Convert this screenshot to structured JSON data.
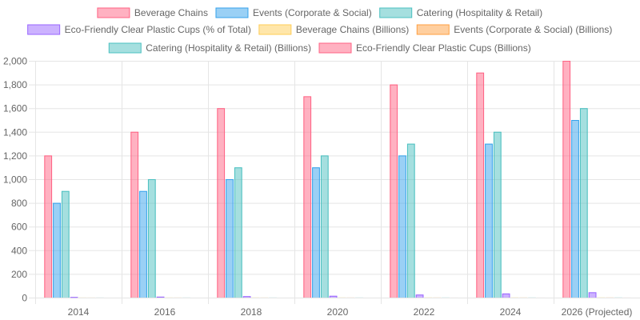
{
  "chart_data": {
    "type": "bar",
    "categories": [
      "2014",
      "2016",
      "2018",
      "2020",
      "2022",
      "2024",
      "2026 (Projected)"
    ],
    "ylim": [
      0,
      2000
    ],
    "yticks": [
      0,
      200,
      400,
      600,
      800,
      1000,
      1200,
      1400,
      1600,
      1800,
      2000
    ],
    "ytick_labels": [
      "0",
      "200",
      "400",
      "600",
      "800",
      "1,000",
      "1,200",
      "1,400",
      "1,600",
      "1,800",
      "2,000"
    ],
    "grid": true,
    "legend_position": "top",
    "series": [
      {
        "name": "Beverage Chains",
        "values": [
          1200,
          1400,
          1600,
          1700,
          1800,
          1900,
          2000
        ],
        "color": "#ff6384"
      },
      {
        "name": "Events (Corporate & Social)",
        "values": [
          800,
          900,
          1000,
          1100,
          1200,
          1300,
          1500
        ],
        "color": "#36a2eb"
      },
      {
        "name": "Catering (Hospitality & Retail)",
        "values": [
          900,
          1000,
          1100,
          1200,
          1300,
          1400,
          1600
        ],
        "color": "#4bc0c0"
      },
      {
        "name": "Eco-Friendly Clear Plastic Cups (% of Total)",
        "values": [
          5,
          8,
          12,
          15,
          25,
          35,
          45
        ],
        "color": "#9966ff"
      },
      {
        "name": "Beverage Chains (Billions)",
        "values": [
          1.2,
          1.4,
          1.6,
          1.7,
          1.8,
          1.9,
          2.0
        ],
        "color": "#ffcd56"
      },
      {
        "name": "Events (Corporate & Social) (Billions)",
        "values": [
          0.8,
          0.9,
          1.0,
          1.1,
          1.2,
          1.3,
          1.5
        ],
        "color": "#ff9f40"
      },
      {
        "name": "Catering (Hospitality & Retail) (Billions)",
        "values": [
          0.9,
          1.0,
          1.1,
          1.2,
          1.3,
          1.4,
          1.6
        ],
        "color": "#4bc0c0"
      },
      {
        "name": "Eco-Friendly Clear Plastic Cups (Billions)",
        "values": [
          0.05,
          0.08,
          0.12,
          0.15,
          0.25,
          0.35,
          0.45
        ],
        "color": "#ff6384"
      }
    ]
  }
}
